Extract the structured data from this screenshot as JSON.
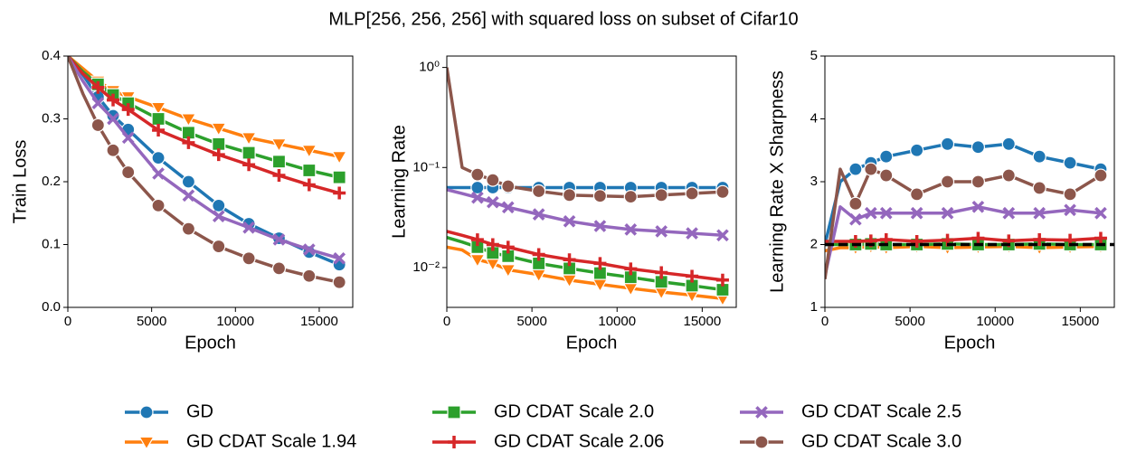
{
  "title": "MLP[256, 256, 256] with squared loss on subset of Cifar10",
  "chart_data": [
    {
      "type": "line",
      "ylabel": "Train Loss",
      "xlabel": "Epoch",
      "x": [
        0,
        900,
        1800,
        2700,
        3600,
        5400,
        7200,
        9000,
        10800,
        12600,
        14400,
        16200
      ],
      "xlim": [
        0,
        17000
      ],
      "xticks": [
        0,
        5000,
        10000,
        15000
      ],
      "ylim": [
        0,
        0.4
      ],
      "yticks": [
        {
          "value": 0,
          "label": "0.0"
        },
        0.1,
        0.2,
        0.3,
        0.4
      ],
      "series": [
        {
          "name": "GD",
          "color": "#1f77b4",
          "marker": "circle",
          "values": [
            0.4,
            0.37,
            0.335,
            0.305,
            0.283,
            0.238,
            0.2,
            0.162,
            0.133,
            0.11,
            0.088,
            0.068
          ]
        },
        {
          "name": "GD CDAT Scale 1.94",
          "color": "#ff7f0e",
          "marker": "triangle",
          "values": [
            0.4,
            0.38,
            0.36,
            0.345,
            0.335,
            0.318,
            0.3,
            0.285,
            0.27,
            0.26,
            0.25,
            0.24
          ]
        },
        {
          "name": "GD CDAT Scale 2.0",
          "color": "#2ca02c",
          "marker": "square",
          "values": [
            0.4,
            0.375,
            0.355,
            0.338,
            0.325,
            0.3,
            0.278,
            0.26,
            0.246,
            0.232,
            0.218,
            0.207
          ]
        },
        {
          "name": "GD CDAT Scale 2.06",
          "color": "#d62728",
          "marker": "plus",
          "values": [
            0.4,
            0.372,
            0.35,
            0.33,
            0.315,
            0.282,
            0.262,
            0.243,
            0.227,
            0.21,
            0.195,
            0.182
          ]
        },
        {
          "name": "GD CDAT Scale 2.5",
          "color": "#9467bd",
          "marker": "x",
          "values": [
            0.4,
            0.36,
            0.325,
            0.3,
            0.27,
            0.213,
            0.178,
            0.145,
            0.127,
            0.108,
            0.092,
            0.078
          ]
        },
        {
          "name": "GD CDAT Scale 3.0",
          "color": "#8c564b",
          "marker": "circle",
          "values": [
            0.4,
            0.34,
            0.29,
            0.25,
            0.215,
            0.162,
            0.125,
            0.097,
            0.078,
            0.062,
            0.05,
            0.04
          ]
        }
      ]
    },
    {
      "type": "line",
      "ylabel": "Learning Rate",
      "xlabel": "Epoch",
      "log_y": true,
      "x": [
        0,
        900,
        1800,
        2700,
        3600,
        5400,
        7200,
        9000,
        10800,
        12600,
        14400,
        16200
      ],
      "xlim": [
        0,
        17000
      ],
      "xticks": [
        0,
        5000,
        10000,
        15000
      ],
      "ylim": [
        0.004,
        1.3
      ],
      "yticks": [
        {
          "value": 0.01,
          "label": "10⁻²"
        },
        {
          "value": 0.1,
          "label": "10⁻¹"
        },
        {
          "value": 1,
          "label": "10⁰"
        }
      ],
      "series": [
        {
          "color": "#1f77b4",
          "marker": "circle",
          "values": [
            0.063,
            0.063,
            0.063,
            0.063,
            0.063,
            0.063,
            0.063,
            0.063,
            0.063,
            0.063,
            0.063,
            0.063
          ]
        },
        {
          "color": "#ff7f0e",
          "marker": "triangle",
          "values": [
            0.016,
            0.015,
            0.012,
            0.011,
            0.0095,
            0.0085,
            0.0075,
            0.0068,
            0.0062,
            0.0057,
            0.0053,
            0.0049
          ]
        },
        {
          "color": "#2ca02c",
          "marker": "square",
          "values": [
            0.02,
            0.018,
            0.016,
            0.014,
            0.013,
            0.011,
            0.0098,
            0.0088,
            0.008,
            0.0072,
            0.0066,
            0.006
          ]
        },
        {
          "color": "#d62728",
          "marker": "plus",
          "values": [
            0.023,
            0.021,
            0.019,
            0.017,
            0.016,
            0.0135,
            0.012,
            0.011,
            0.0097,
            0.0089,
            0.0082,
            0.0075
          ]
        },
        {
          "color": "#9467bd",
          "marker": "x",
          "values": [
            0.06,
            0.055,
            0.05,
            0.045,
            0.04,
            0.034,
            0.029,
            0.026,
            0.024,
            0.023,
            0.022,
            0.021
          ]
        },
        {
          "color": "#8c564b",
          "marker": "circle",
          "values": [
            1.0,
            0.1,
            0.085,
            0.075,
            0.065,
            0.058,
            0.053,
            0.052,
            0.051,
            0.053,
            0.055,
            0.057
          ]
        }
      ]
    },
    {
      "type": "line",
      "ylabel": "Learning Rate X Sharpness",
      "xlabel": "Epoch",
      "x": [
        0,
        900,
        1800,
        2700,
        3600,
        5400,
        7200,
        9000,
        10800,
        12600,
        14400,
        16200
      ],
      "xlim": [
        0,
        17000
      ],
      "xticks": [
        0,
        5000,
        10000,
        15000
      ],
      "ylim": [
        1,
        5
      ],
      "yticks": [
        1,
        2,
        3,
        4,
        5
      ],
      "hline": 2,
      "series": [
        {
          "color": "#1f77b4",
          "marker": "circle",
          "values": [
            2.0,
            3.0,
            3.2,
            3.3,
            3.4,
            3.5,
            3.6,
            3.55,
            3.6,
            3.4,
            3.3,
            3.2
          ]
        },
        {
          "color": "#ff7f0e",
          "marker": "triangle",
          "values": [
            1.9,
            1.95,
            1.95,
            1.97,
            1.95,
            1.97,
            1.95,
            1.96,
            1.97,
            1.95,
            1.96,
            1.97
          ]
        },
        {
          "color": "#2ca02c",
          "marker": "square",
          "values": [
            2.0,
            2.0,
            2.0,
            2.01,
            2.0,
            2.0,
            2.01,
            2.0,
            2.0,
            2.01,
            2.0,
            2.0
          ]
        },
        {
          "color": "#d62728",
          "marker": "plus",
          "values": [
            2.05,
            2.05,
            2.05,
            2.06,
            2.08,
            2.05,
            2.07,
            2.1,
            2.06,
            2.08,
            2.07,
            2.1
          ]
        },
        {
          "color": "#9467bd",
          "marker": "x",
          "values": [
            1.5,
            2.6,
            2.4,
            2.5,
            2.5,
            2.5,
            2.5,
            2.6,
            2.5,
            2.5,
            2.55,
            2.5
          ]
        },
        {
          "color": "#8c564b",
          "marker": "circle",
          "values": [
            1.45,
            3.2,
            2.65,
            3.2,
            3.1,
            2.8,
            3.0,
            3.0,
            3.1,
            2.9,
            2.8,
            3.1
          ]
        }
      ]
    }
  ]
}
